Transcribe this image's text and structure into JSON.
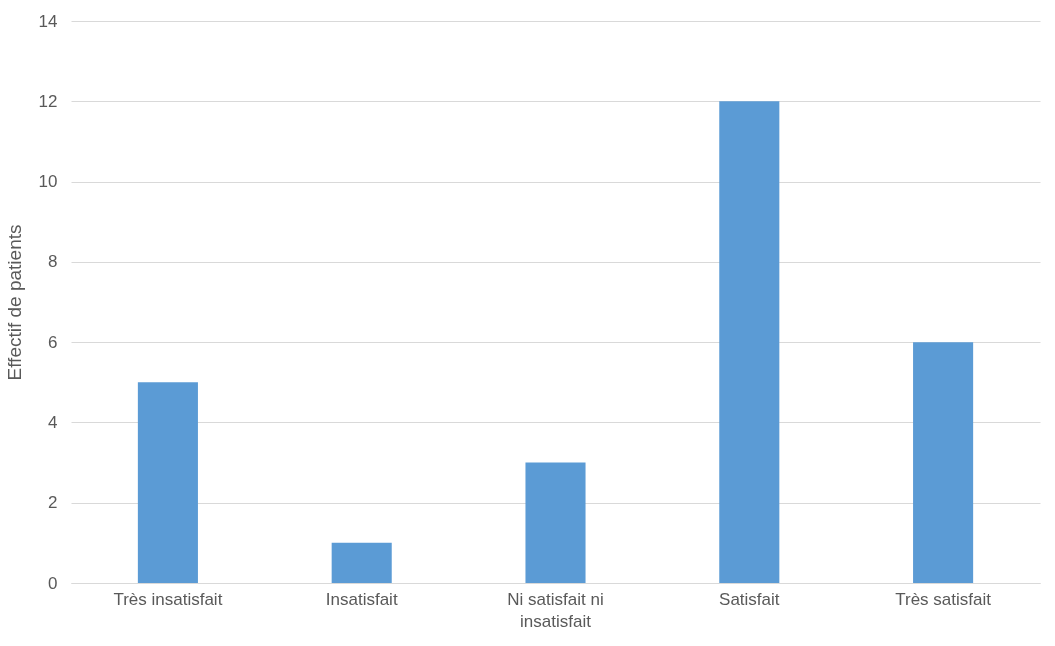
{
  "chart_data": {
    "type": "bar",
    "ylabel": "Effectif de patients",
    "categories": [
      "Très insatisfait",
      "Insatisfait",
      "Ni satisfait ni insatisfait",
      "Satisfait",
      "Très satisfait"
    ],
    "values": [
      5,
      1,
      3,
      12,
      6
    ],
    "color": "#5b9bd5",
    "ylim": [
      0,
      14
    ],
    "yticks": [
      0,
      2,
      4,
      6,
      8,
      10,
      12,
      14
    ],
    "grid": "y"
  }
}
